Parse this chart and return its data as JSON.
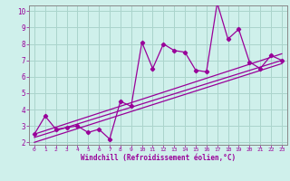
{
  "xlabel": "Windchill (Refroidissement éolien,°C)",
  "background_color": "#cff0eb",
  "grid_color": "#aad4cc",
  "line_color": "#990099",
  "x_data": [
    0,
    1,
    2,
    3,
    4,
    5,
    6,
    7,
    8,
    9,
    10,
    11,
    12,
    13,
    14,
    15,
    16,
    17,
    18,
    19,
    20,
    21,
    22,
    23
  ],
  "y_main": [
    2.5,
    3.6,
    2.8,
    2.9,
    3.0,
    2.6,
    2.8,
    2.2,
    4.5,
    4.2,
    8.1,
    6.5,
    8.0,
    7.6,
    7.5,
    6.4,
    6.3,
    10.5,
    8.3,
    8.9,
    6.9,
    6.5,
    7.3,
    7.0
  ],
  "y_line1_start": 2.5,
  "y_line1_end": 7.4,
  "y_line2_start": 2.3,
  "y_line2_end": 7.0,
  "y_line3_start": 2.0,
  "y_line3_end": 6.8,
  "ylim": [
    2,
    10
  ],
  "xlim": [
    0,
    23
  ],
  "yticks": [
    2,
    3,
    4,
    5,
    6,
    7,
    8,
    9,
    10
  ],
  "xticks": [
    0,
    1,
    2,
    3,
    4,
    5,
    6,
    7,
    8,
    9,
    10,
    11,
    12,
    13,
    14,
    15,
    16,
    17,
    18,
    19,
    20,
    21,
    22,
    23
  ]
}
